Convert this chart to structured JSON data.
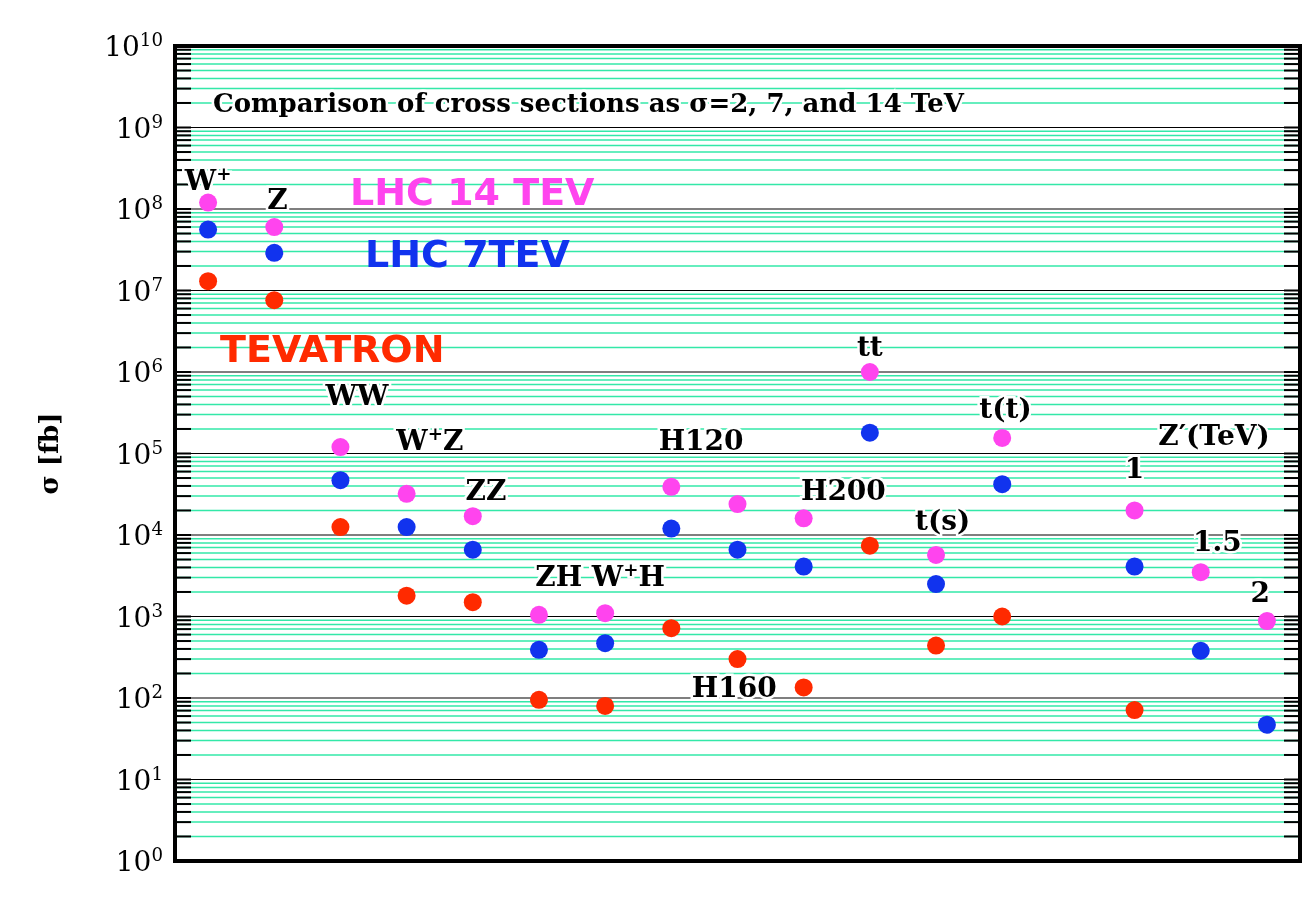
{
  "chart_data": {
    "type": "scatter",
    "title": "Comparison of cross sections as σ=2, 7, and 14 TeV",
    "ylabel": "σ [fb]",
    "categories": [
      null,
      null,
      null,
      null,
      null,
      null,
      null,
      null,
      null,
      null,
      null,
      null,
      null,
      null,
      null,
      null,
      null
    ],
    "series": [
      {
        "name": "LHC 14 TEV",
        "color": "#ff44ee",
        "values": [
          120000000.0,
          60000000.0,
          120000.0,
          32000.0,
          17000.0,
          1050,
          1100,
          39000.0,
          24000.0,
          16000.0,
          1000000.0,
          5700,
          155000.0,
          null,
          20000.0,
          3500,
          880
        ]
      },
      {
        "name": "LHC 7TEV",
        "color": "#1133ee",
        "values": [
          56000000.0,
          29000000.0,
          47000.0,
          12500.0,
          6600,
          390,
          470,
          12000.0,
          6600,
          4100,
          180000.0,
          2500,
          42000.0,
          null,
          4100,
          380,
          47
        ]
      },
      {
        "name": "TEVATRON",
        "color": "#ff2a00",
        "values": [
          13000000.0,
          7600000.0,
          12500.0,
          1800,
          1500,
          95,
          80,
          720,
          300,
          135,
          7400,
          440,
          1000,
          null,
          71,
          null,
          null
        ]
      }
    ],
    "annotations": [
      "W$^{+}$",
      "Z",
      "WW",
      "W$^{+}$Z",
      "ZZ",
      "ZH",
      "W$^{+}$H",
      "H120",
      "H160",
      "H200",
      "tt",
      "t(s)",
      "t(t)",
      "Z′(TeV)",
      "1",
      "1.5",
      "2"
    ],
    "ylim": [
      1,
      10000000000.0
    ],
    "yticks": [
      {
        "value": 1,
        "label": "10$^{0}$"
      },
      {
        "value": 2,
        "label": null
      },
      {
        "value": 3,
        "label": null
      },
      {
        "value": 4,
        "label": null
      },
      {
        "value": 5,
        "label": null
      },
      {
        "value": 6,
        "label": null
      },
      {
        "value": 7,
        "label": null
      },
      {
        "value": 8,
        "label": null
      },
      {
        "value": 9,
        "label": null
      },
      {
        "value": 10,
        "label": "10$^{1}$"
      },
      {
        "value": 20,
        "label": null
      },
      {
        "value": 30,
        "label": null
      },
      {
        "value": 40,
        "label": null
      },
      {
        "value": 50,
        "label": null
      },
      {
        "value": 60,
        "label": null
      },
      {
        "value": 70,
        "label": null
      },
      {
        "value": 80,
        "label": null
      },
      {
        "value": 90,
        "label": null
      },
      {
        "value": 100,
        "label": "10$^{2}$"
      },
      {
        "value": 200,
        "label": null
      },
      {
        "value": 300,
        "label": null
      },
      {
        "value": 400,
        "label": null
      },
      {
        "value": 500,
        "label": null
      },
      {
        "value": 600,
        "label": null
      },
      {
        "value": 700,
        "label": null
      },
      {
        "value": 800,
        "label": null
      },
      {
        "value": 900,
        "label": null
      },
      {
        "value": 1000,
        "label": "10$^{3}$"
      },
      {
        "value": 2000,
        "label": null
      },
      {
        "value": 3000,
        "label": null
      },
      {
        "value": 4000,
        "label": null
      },
      {
        "value": 5000,
        "label": null
      },
      {
        "value": 6000,
        "label": null
      },
      {
        "value": 7000,
        "label": null
      },
      {
        "value": 8000,
        "label": null
      },
      {
        "value": 9000,
        "label": null
      },
      {
        "value": 10000,
        "label": "10$^{4}$"
      },
      {
        "value": 20000,
        "label": null
      },
      {
        "value": 30000,
        "label": null
      },
      {
        "value": 40000,
        "label": null
      },
      {
        "value": 50000,
        "label": null
      },
      {
        "value": 60000,
        "label": null
      },
      {
        "value": 70000,
        "label": null
      },
      {
        "value": 80000,
        "label": null
      },
      {
        "value": 90000,
        "label": null
      },
      {
        "value": 100000,
        "label": "10$^{5}$"
      },
      {
        "value": 200000,
        "label": null
      },
      {
        "value": 300000,
        "label": null
      },
      {
        "value": 400000,
        "label": null
      },
      {
        "value": 500000,
        "label": null
      },
      {
        "value": 600000,
        "label": null
      },
      {
        "value": 700000,
        "label": null
      },
      {
        "value": 800000,
        "label": null
      },
      {
        "value": 900000,
        "label": null
      },
      {
        "value": 1000000,
        "label": "10$^{6}$"
      },
      {
        "value": 2000000,
        "label": null
      },
      {
        "value": 3000000,
        "label": null
      },
      {
        "value": 4000000,
        "label": null
      },
      {
        "value": 5000000,
        "label": null
      },
      {
        "value": 6000000,
        "label": null
      },
      {
        "value": 7000000,
        "label": null
      },
      {
        "value": 8000000,
        "label": null
      },
      {
        "value": 9000000,
        "label": null
      },
      {
        "value": 10000000,
        "label": "10$^{7}$"
      },
      {
        "value": 20000000,
        "label": null
      },
      {
        "value": 30000000,
        "label": null
      },
      {
        "value": 40000000,
        "label": null
      },
      {
        "value": 50000000,
        "label": null
      },
      {
        "value": 60000000,
        "label": null
      },
      {
        "value": 70000000,
        "label": null
      },
      {
        "value": 80000000,
        "label": null
      },
      {
        "value": 90000000,
        "label": null
      },
      {
        "value": 100000000,
        "label": "10$^{8}$"
      },
      {
        "value": 200000000,
        "label": null
      },
      {
        "value": 300000000,
        "label": null
      },
      {
        "value": 400000000,
        "label": null
      },
      {
        "value": 500000000,
        "label": null
      },
      {
        "value": 600000000,
        "label": null
      },
      {
        "value": 700000000,
        "label": null
      },
      {
        "value": 800000000,
        "label": null
      },
      {
        "value": 900000000,
        "label": null
      },
      {
        "value": 1000000000,
        "label": "10$^{9}$"
      },
      {
        "value": 2000000000,
        "label": null
      },
      {
        "value": 3000000000,
        "label": null
      },
      {
        "value": 4000000000,
        "label": null
      },
      {
        "value": 5000000000,
        "label": null
      },
      {
        "value": 6000000000,
        "label": null
      },
      {
        "value": 7000000000,
        "label": null
      },
      {
        "value": 8000000000,
        "label": null
      },
      {
        "value": 9000000000,
        "label": null
      },
      {
        "value": 10000000000,
        "label": "10$^{10}$"
      }
    ],
    "log": true,
    "grid": "y",
    "marker": "circle",
    "legend": "top left",
    "tick_labels": "y"
  }
}
